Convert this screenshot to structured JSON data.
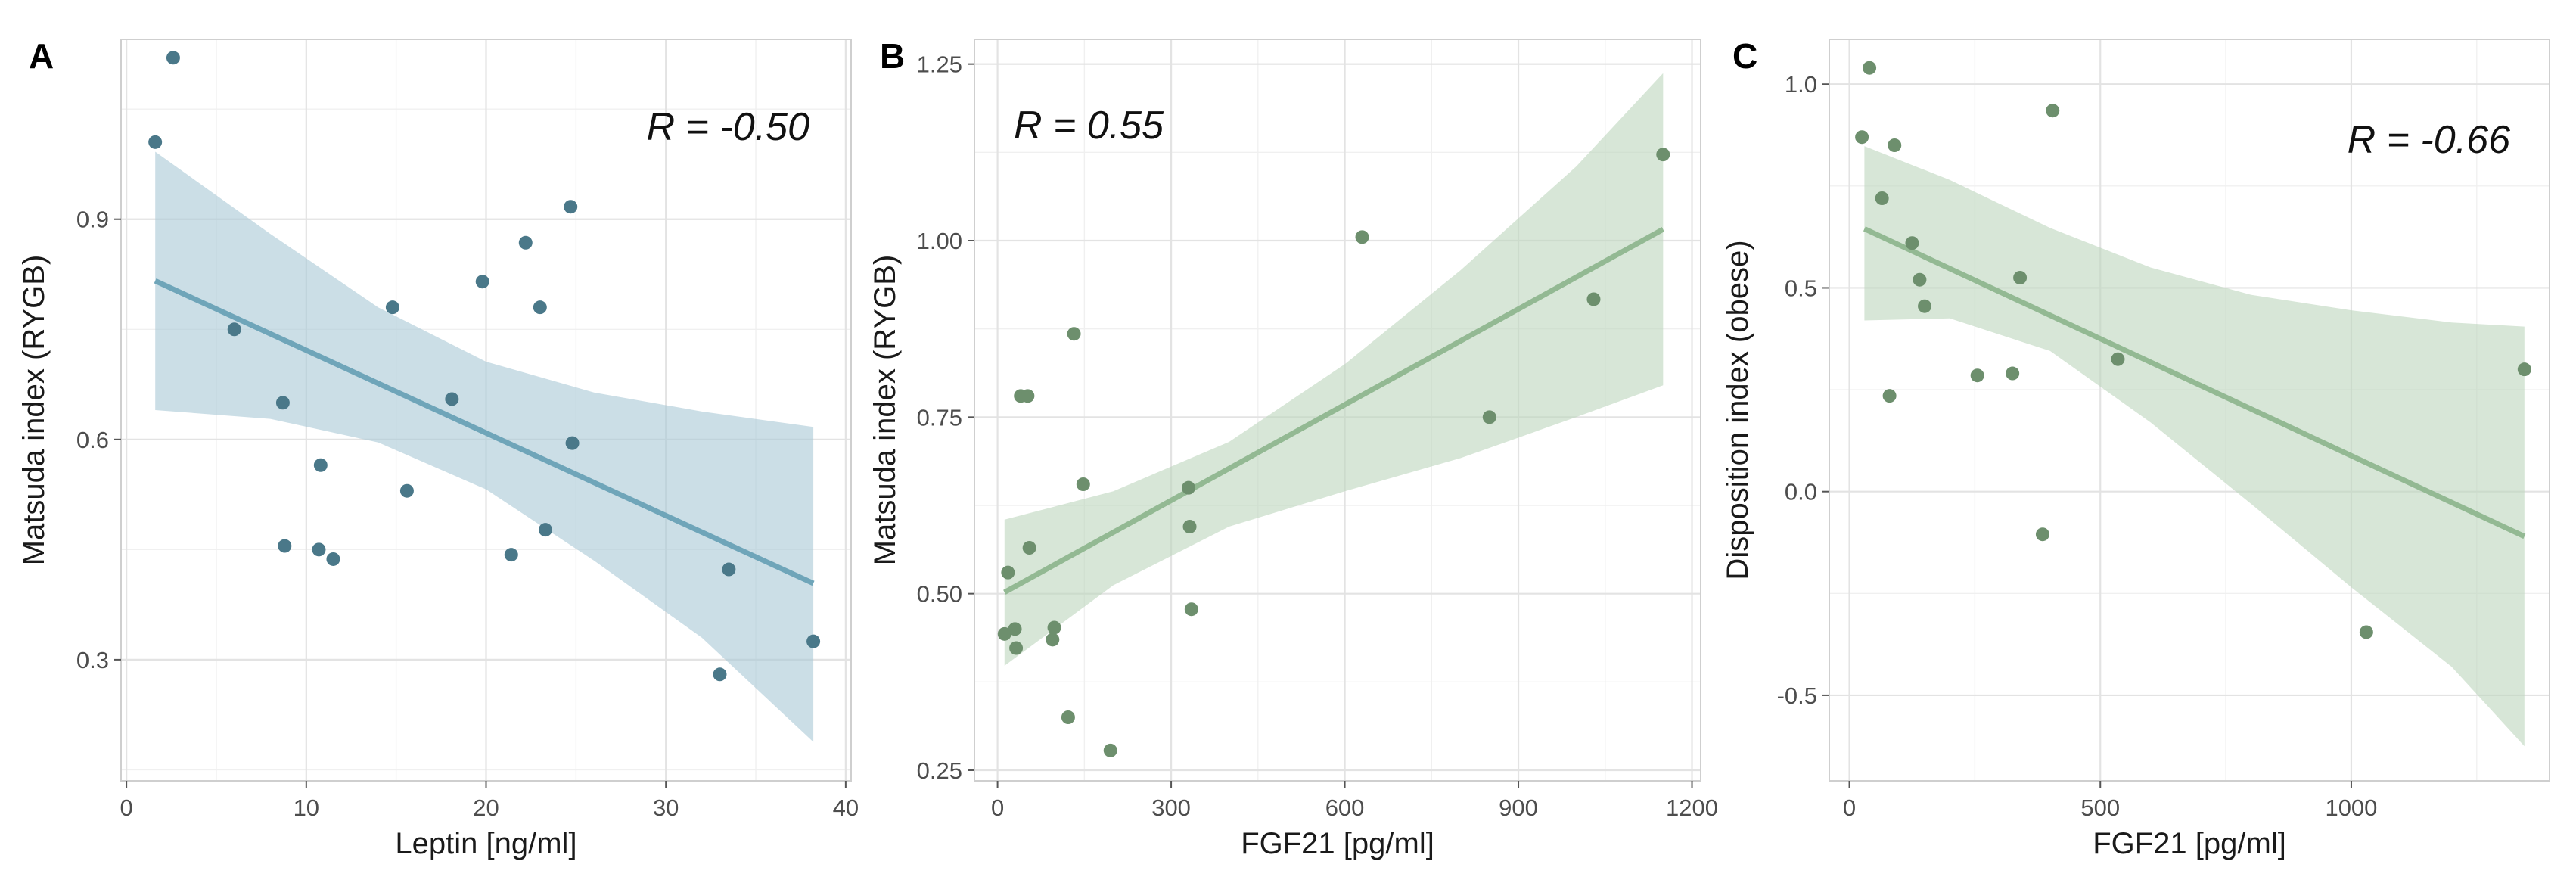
{
  "chart_data": [
    {
      "type": "scatter",
      "panel_label": "A",
      "xlabel": "Leptin [ng/ml]",
      "ylabel": "Matsuda index (RYGB)",
      "annotation": "R = -0.50",
      "xlim": [
        -0.3,
        40.3
      ],
      "ylim": [
        0.135,
        1.145
      ],
      "x_ticks": [
        0,
        10,
        20,
        30,
        40
      ],
      "x_tick_labels": [
        "0",
        "10",
        "20",
        "30",
        "40"
      ],
      "y_ticks": [
        0.3,
        0.6,
        0.9
      ],
      "y_tick_labels": [
        "0.3",
        "0.6",
        "0.9"
      ],
      "point_color": "#4a7889",
      "fit_color": "#6fa5b9",
      "band_color": "#a9c8d5",
      "points": [
        [
          1.6,
          1.005
        ],
        [
          2.6,
          1.12
        ],
        [
          6.0,
          0.75
        ],
        [
          8.7,
          0.65
        ],
        [
          8.8,
          0.455
        ],
        [
          10.7,
          0.45
        ],
        [
          10.8,
          0.565
        ],
        [
          11.5,
          0.437
        ],
        [
          14.8,
          0.78
        ],
        [
          15.6,
          0.53
        ],
        [
          18.1,
          0.655
        ],
        [
          19.8,
          0.815
        ],
        [
          21.4,
          0.443
        ],
        [
          22.2,
          0.868
        ],
        [
          23.0,
          0.78
        ],
        [
          23.3,
          0.477
        ],
        [
          24.7,
          0.917
        ],
        [
          24.8,
          0.595
        ],
        [
          33.0,
          0.28
        ],
        [
          33.5,
          0.423
        ],
        [
          38.2,
          0.325
        ]
      ],
      "fit_line": [
        [
          1.6,
          0.816
        ],
        [
          38.2,
          0.404
        ]
      ],
      "confidence_band": {
        "x": [
          1.6,
          8,
          14,
          20,
          26,
          32,
          38.2
        ],
        "upper": [
          0.992,
          0.88,
          0.78,
          0.706,
          0.664,
          0.638,
          0.617
        ],
        "lower": [
          0.64,
          0.628,
          0.596,
          0.532,
          0.435,
          0.33,
          0.188
        ]
      }
    },
    {
      "type": "scatter",
      "panel_label": "B",
      "xlabel": "FGF21 [pg/ml]",
      "ylabel": "Matsuda index (RYGB)",
      "annotation": "R = 0.55",
      "xlim": [
        -40,
        1215
      ],
      "ylim": [
        0.235,
        1.285
      ],
      "x_ticks": [
        0,
        300,
        600,
        900,
        1200
      ],
      "x_tick_labels": [
        "0",
        "300",
        "600",
        "900",
        "1200"
      ],
      "y_ticks": [
        0.25,
        0.5,
        0.75,
        1.0,
        1.25
      ],
      "y_tick_labels": [
        "0.25",
        "0.50",
        "0.75",
        "1.00",
        "1.25"
      ],
      "point_color": "#6d8f6d",
      "fit_color": "#93b993",
      "band_color": "#bcd6bc",
      "points": [
        [
          12,
          0.443
        ],
        [
          18,
          0.53
        ],
        [
          30,
          0.45
        ],
        [
          32,
          0.423
        ],
        [
          40,
          0.78
        ],
        [
          52,
          0.78
        ],
        [
          55,
          0.565
        ],
        [
          95,
          0.435
        ],
        [
          98,
          0.452
        ],
        [
          122,
          0.325
        ],
        [
          132,
          0.868
        ],
        [
          148,
          0.655
        ],
        [
          195,
          0.278
        ],
        [
          330,
          0.65
        ],
        [
          332,
          0.595
        ],
        [
          335,
          0.478
        ],
        [
          630,
          1.005
        ],
        [
          850,
          0.75
        ],
        [
          1030,
          0.917
        ],
        [
          1150,
          1.122
        ]
      ],
      "fit_line": [
        [
          12,
          0.502
        ],
        [
          1150,
          1.016
        ]
      ],
      "confidence_band": {
        "x": [
          12,
          200,
          400,
          600,
          800,
          1000,
          1150
        ],
        "upper": [
          0.605,
          0.645,
          0.715,
          0.825,
          0.958,
          1.105,
          1.237
        ],
        "lower": [
          0.398,
          0.512,
          0.595,
          0.645,
          0.692,
          0.75,
          0.795
        ]
      }
    },
    {
      "type": "scatter",
      "panel_label": "C",
      "xlabel": "FGF21 [pg/ml]",
      "ylabel": "Disposition index (obese)",
      "annotation": "R = -0.66",
      "xlim": [
        -40,
        1395
      ],
      "ylim": [
        -0.71,
        1.11
      ],
      "x_ticks": [
        0,
        500,
        1000
      ],
      "x_tick_labels": [
        "0",
        "500",
        "1000"
      ],
      "y_ticks": [
        -0.5,
        0.0,
        0.5,
        1.0
      ],
      "y_tick_labels": [
        "-0.5",
        "0.0",
        "0.5",
        "1.0"
      ],
      "point_color": "#6d8f6d",
      "fit_color": "#93b993",
      "band_color": "#bcd6bc",
      "points": [
        [
          25,
          0.87
        ],
        [
          40,
          1.04
        ],
        [
          65,
          0.72
        ],
        [
          80,
          0.235
        ],
        [
          90,
          0.85
        ],
        [
          125,
          0.61
        ],
        [
          140,
          0.52
        ],
        [
          150,
          0.455
        ],
        [
          255,
          0.285
        ],
        [
          325,
          0.29
        ],
        [
          340,
          0.525
        ],
        [
          385,
          -0.105
        ],
        [
          405,
          0.935
        ],
        [
          535,
          0.325
        ],
        [
          1030,
          -0.345
        ],
        [
          1345,
          0.3
        ]
      ],
      "fit_line": [
        [
          30,
          0.645
        ],
        [
          1345,
          -0.11
        ]
      ],
      "confidence_band": {
        "x": [
          30,
          200,
          400,
          600,
          800,
          1000,
          1200,
          1345
        ],
        "upper": [
          0.848,
          0.765,
          0.647,
          0.55,
          0.483,
          0.445,
          0.415,
          0.405
        ],
        "lower": [
          0.42,
          0.425,
          0.345,
          0.17,
          -0.03,
          -0.235,
          -0.43,
          -0.625
        ]
      }
    }
  ]
}
